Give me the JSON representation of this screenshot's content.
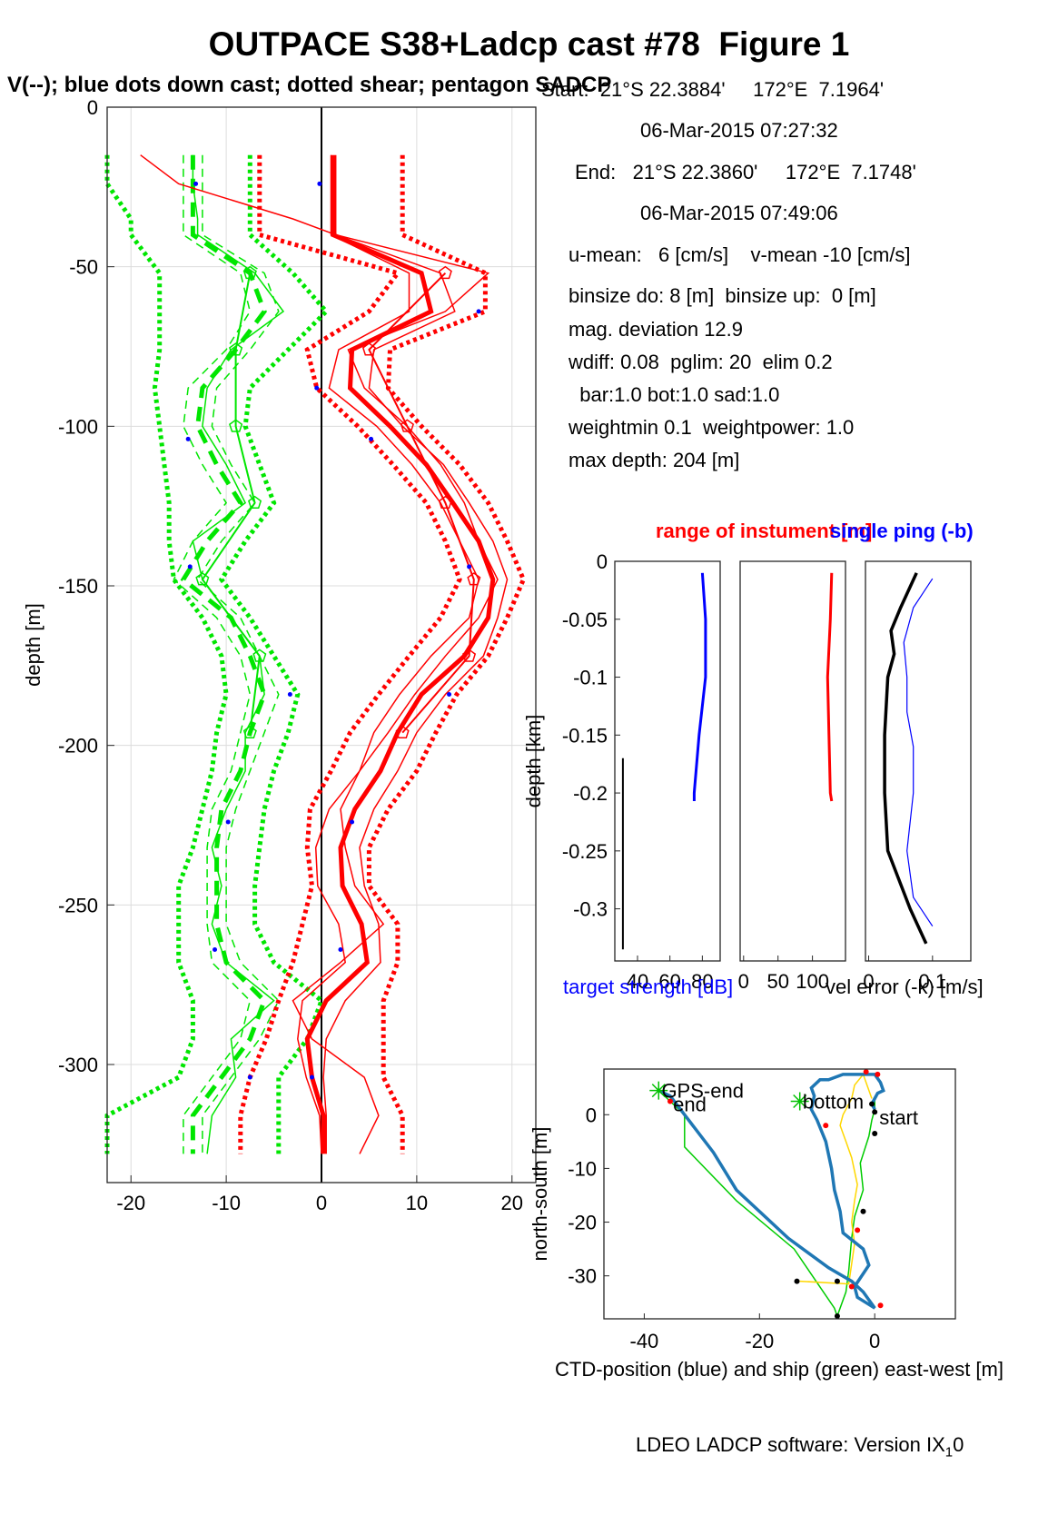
{
  "header": {
    "title": "OUTPACE S38+Ladcp cast #78  Figure 1",
    "subtitle": "V(--); blue dots down cast; dotted shear; pentagon SADCP"
  },
  "cast_info": {
    "start_line": "Start:  21°S 22.3884'     172°E  7.1964'",
    "start_time": "06-Mar-2015 07:27:32",
    "end_line": "End:   21°S 22.3860'     172°E  7.1748'",
    "end_time": "06-Mar-2015 07:49:06",
    "mean_line": "u-mean:   6 [cm/s]    v-mean -10 [cm/s]",
    "binsize_line": "binsize do: 8 [m]  binsize up:  0 [m]",
    "magdev_line": "mag. deviation 12.9",
    "wdiff_line": "wdiff: 0.08  pglim: 20  elim 0.2",
    "bar_line": "  bar:1.0 bot:1.0 sad:1.0",
    "weight_line": "weightmin 0.1  weightpower: 1.0",
    "maxdepth_line": "max depth: 204 [m]"
  },
  "footer": {
    "software": "LDEO LADCP software: Version IX",
    "subscript": "1",
    "suffix": "0"
  },
  "colors": {
    "u": "#ff0000",
    "v": "#00e600",
    "dots": "#0000ff",
    "ts": "#0000ff",
    "ship": "#00cc00",
    "ctd": "#1f77b4",
    "sadcp_track": "#ffd700"
  },
  "chart_data": [
    {
      "type": "line",
      "name": "velocity-profile",
      "ylabel": "depth [m]",
      "xlabel": "",
      "xlim": [
        -22.5,
        22.5
      ],
      "ylim": [
        -337,
        0
      ],
      "xticks": [
        -20,
        -10,
        0,
        10,
        20
      ],
      "yticks": [
        0,
        -50,
        -100,
        -150,
        -200,
        -250,
        -300
      ],
      "grid": true,
      "depths": [
        -15,
        -24,
        -35,
        -40,
        -52,
        -64,
        -76,
        -88,
        -100,
        -112,
        -124,
        -136,
        -148,
        -160,
        -172,
        -184,
        -196,
        -208,
        -220,
        -232,
        -244,
        -256,
        -268,
        -280,
        -292,
        -304,
        -316,
        -328
      ],
      "u": {
        "mean": [
          1.2,
          1.2,
          1.2,
          1.2,
          10.5,
          11.5,
          3.2,
          3.0,
          7.2,
          11.0,
          13.8,
          16.5,
          18.0,
          17.5,
          15.0,
          10.5,
          8.0,
          6.2,
          3.5,
          2.0,
          2.2,
          4.2,
          4.8,
          0.5,
          -1.5,
          -1.0,
          0.2,
          0.2
        ],
        "lower": [
          1.0,
          1.0,
          1.0,
          1.0,
          9.2,
          9.2,
          1.8,
          0.8,
          5.8,
          9.5,
          12.5,
          14.5,
          16.5,
          15.5,
          11.5,
          8.2,
          5.5,
          4.0,
          0.8,
          -0.6,
          -0.4,
          1.8,
          2.5,
          -2.0,
          -2.5,
          -1.6,
          -0.2,
          0.0
        ],
        "upper": [
          1.5,
          1.5,
          1.5,
          1.5,
          12.5,
          14.0,
          5.5,
          5.0,
          8.5,
          12.8,
          15.5,
          18.0,
          19.5,
          18.5,
          17.0,
          13.0,
          10.0,
          8.0,
          5.5,
          4.0,
          4.5,
          6.0,
          6.2,
          2.5,
          0.5,
          0.2,
          0.5,
          0.5
        ],
        "shear_lower": [
          -6.5,
          -6.5,
          -6.5,
          -6.5,
          8.0,
          5.0,
          -1.5,
          -0.5,
          3.8,
          7.5,
          11.0,
          13.0,
          14.5,
          12.5,
          9.2,
          6.0,
          3.0,
          1.0,
          -1.2,
          -1.5,
          -1.0,
          -2.0,
          -3.0,
          -4.5,
          -5.8,
          -7.5,
          -8.5,
          -8.5
        ],
        "shear_upper": [
          8.5,
          8.5,
          8.5,
          8.5,
          17.2,
          17.2,
          7.2,
          7.0,
          10.5,
          14.5,
          17.5,
          19.5,
          21.2,
          19.5,
          17.5,
          14.2,
          12.0,
          10.0,
          7.0,
          5.0,
          5.0,
          8.0,
          8.0,
          6.5,
          6.5,
          6.5,
          8.5,
          8.5
        ],
        "single": [
          -19,
          -15,
          -3,
          1.5,
          17.5,
          13.0,
          2.8,
          4.5,
          9.0,
          12.5,
          15.0,
          16.5,
          18.5,
          16.5,
          13.0,
          9.8,
          7.0,
          4.0,
          2.0,
          2.5,
          3.5,
          6.5,
          2.0,
          -3.0,
          -1.0,
          4.5,
          6.0,
          4.0
        ],
        "sadcp": [
          13.0,
          5.0,
          9.0,
          13.0,
          16.0,
          15.5,
          8.5
        ],
        "sadcp_depths": [
          -52,
          -76,
          -100,
          -124,
          -148,
          -172,
          -196
        ]
      },
      "v": {
        "mean": [
          -13.5,
          -13.5,
          -13.5,
          -13.5,
          -7.5,
          -6.0,
          -9.0,
          -12.5,
          -13.0,
          -11.0,
          -8.5,
          -12.0,
          -14.5,
          -9.5,
          -7.5,
          -6.0,
          -7.5,
          -8.5,
          -10.5,
          -11.0,
          -11.0,
          -11.0,
          -10.0,
          -6.0,
          -7.5,
          -10.5,
          -13.5,
          -13.5
        ],
        "lower": [
          -14.5,
          -14.5,
          -14.5,
          -14.5,
          -8.5,
          -7.5,
          -10.0,
          -14.0,
          -14.5,
          -12.5,
          -10.0,
          -13.5,
          -15.5,
          -11.0,
          -8.5,
          -7.5,
          -8.5,
          -9.5,
          -11.5,
          -12.0,
          -12.0,
          -12.0,
          -11.5,
          -7.5,
          -8.5,
          -11.5,
          -14.5,
          -14.5
        ],
        "upper": [
          -12.5,
          -12.5,
          -12.5,
          -12.5,
          -6.0,
          -4.5,
          -7.5,
          -11.0,
          -11.5,
          -9.5,
          -7.0,
          -10.5,
          -13.0,
          -8.5,
          -6.5,
          -4.5,
          -6.0,
          -7.5,
          -9.0,
          -10.0,
          -10.0,
          -10.0,
          -8.5,
          -4.5,
          -6.5,
          -9.5,
          -12.5,
          -12.5
        ],
        "shear_lower": [
          -22.5,
          -22.5,
          -20.0,
          -20.0,
          -17.0,
          -17.0,
          -17.0,
          -17.5,
          -17.0,
          -16.5,
          -16.0,
          -16.0,
          -15.5,
          -12.5,
          -10.5,
          -10.0,
          -11.0,
          -11.5,
          -12.5,
          -13.5,
          -15.0,
          -15.0,
          -15.0,
          -13.5,
          -13.5,
          -15.0,
          -22.5,
          -22.5
        ],
        "shear_upper": [
          -7.5,
          -7.5,
          -7.5,
          -7.5,
          -3.0,
          0.5,
          -3.5,
          -7.5,
          -8.0,
          -6.5,
          -5.0,
          -8.0,
          -10.5,
          -7.5,
          -5.0,
          -2.5,
          -3.5,
          -5.0,
          -6.0,
          -6.5,
          -7.0,
          -7.0,
          -5.0,
          0.0,
          -1.5,
          -4.5,
          -4.5,
          -4.5
        ],
        "single": [
          -13.5,
          -13.5,
          -13.0,
          -13.0,
          -7.0,
          -4.0,
          -9.5,
          -12.0,
          -12.5,
          -10.0,
          -8.0,
          -13.5,
          -12.5,
          -9.5,
          -6.5,
          -6.0,
          -8.0,
          -8.0,
          -10.0,
          -11.5,
          -10.5,
          -11.5,
          -10.0,
          -5.0,
          -9.5,
          -9.0,
          -11.5,
          -12.0
        ],
        "sadcp": [
          -7.5,
          -9.0,
          -9.0,
          -7.0,
          -12.5,
          -6.5,
          -7.5
        ],
        "sadcp_depths": [
          -52,
          -76,
          -100,
          -124,
          -148,
          -172,
          -196
        ]
      },
      "downcast_dots": [
        [
          -13.2,
          -24
        ],
        [
          -0.2,
          -24
        ],
        [
          16.5,
          -64
        ],
        [
          -0.5,
          -88
        ],
        [
          -14.0,
          -104
        ],
        [
          5.2,
          -104
        ],
        [
          15.5,
          -144
        ],
        [
          -13.8,
          -144
        ],
        [
          13.4,
          -184
        ],
        [
          -3.3,
          -184
        ],
        [
          -9.8,
          -224
        ],
        [
          3.2,
          -224
        ],
        [
          -11.2,
          -264
        ],
        [
          2.0,
          -264
        ],
        [
          -7.5,
          -304
        ],
        [
          -1.0,
          -304
        ]
      ]
    },
    {
      "type": "line",
      "name": "target-strength",
      "title": "",
      "xlabel": "target strength [dB]",
      "ylabel": "depth [km]",
      "xlim": [
        26,
        91
      ],
      "ylim": [
        -0.345,
        0
      ],
      "xticks": [
        40,
        60,
        80
      ],
      "yticks": [
        0,
        -0.05,
        -0.1,
        -0.15,
        -0.2,
        -0.25,
        -0.3
      ],
      "depth_km": [
        -0.01,
        -0.05,
        -0.1,
        -0.15,
        -0.2,
        -0.207
      ],
      "values": [
        80,
        82,
        82,
        78,
        75,
        75
      ],
      "black_depth_km": [
        -0.17,
        -0.335
      ],
      "black_values": [
        31,
        31
      ]
    },
    {
      "type": "line",
      "name": "range-of-instrument",
      "title": "range of instument [m]",
      "xlim": [
        -5,
        148
      ],
      "xticks": [
        0,
        50,
        100
      ],
      "depth_km": [
        -0.01,
        -0.05,
        -0.1,
        -0.15,
        -0.2,
        -0.207
      ],
      "values": [
        128,
        126,
        122,
        124,
        126,
        128
      ]
    },
    {
      "type": "line",
      "name": "vel-error",
      "title": "single ping (-b)",
      "xlabel": "vel error (-k) [m/s]",
      "xlim": [
        -0.005,
        0.16
      ],
      "xticks": [
        0,
        0.1
      ],
      "series": [
        {
          "name": "single ping (-b)",
          "depth_km": [
            -0.015,
            -0.04,
            -0.07,
            -0.1,
            -0.13,
            -0.16,
            -0.2,
            -0.25,
            -0.29,
            -0.315
          ],
          "values": [
            0.1,
            0.07,
            0.055,
            0.06,
            0.06,
            0.07,
            0.07,
            0.06,
            0.07,
            0.1
          ]
        },
        {
          "name": "",
          "depth_km": [
            -0.01,
            -0.04,
            -0.06,
            -0.08,
            -0.1,
            -0.15,
            -0.2,
            -0.25,
            -0.3,
            -0.33
          ],
          "values": [
            0.075,
            0.05,
            0.035,
            0.04,
            0.03,
            0.025,
            0.025,
            0.03,
            0.065,
            0.09
          ]
        }
      ]
    },
    {
      "type": "line",
      "name": "position",
      "xlabel": "CTD-position (blue) and ship (green) east-west [m]",
      "ylabel": "north-south [m]",
      "xlim": [
        -47,
        14
      ],
      "ylim": [
        -38,
        8.5
      ],
      "xticks": [
        -40,
        -20,
        0
      ],
      "yticks": [
        0,
        -10,
        -20,
        -30
      ],
      "annotations": [
        "GPS-end",
        "end",
        "bottom",
        "start"
      ],
      "ctd": [
        [
          -37.5,
          4.5
        ],
        [
          -35.5,
          3.5
        ],
        [
          -33,
          0
        ],
        [
          -28,
          -7
        ],
        [
          -24,
          -14
        ],
        [
          -15,
          -23
        ],
        [
          -8,
          -28.5
        ],
        [
          -4,
          -31
        ],
        [
          -2,
          -33
        ],
        [
          0,
          -36
        ],
        [
          -3,
          -34
        ],
        [
          -3.5,
          -32
        ],
        [
          -1,
          -28
        ],
        [
          -2,
          -25
        ],
        [
          -5.5,
          -22
        ],
        [
          -6,
          -18
        ],
        [
          -7,
          -14
        ],
        [
          -7.5,
          -10
        ],
        [
          -8.5,
          -5
        ],
        [
          -10,
          -1
        ],
        [
          -11,
          1
        ],
        [
          -10.5,
          3.5
        ],
        [
          -11,
          5
        ],
        [
          -9.5,
          6.5
        ],
        [
          -8,
          6.5
        ],
        [
          -5.5,
          7.5
        ],
        [
          -3,
          7.5
        ],
        [
          -1,
          7.5
        ],
        [
          0,
          7.5
        ],
        [
          1,
          6
        ],
        [
          1.5,
          4.5
        ],
        [
          0.5,
          4
        ],
        [
          0,
          3
        ],
        [
          -0.5,
          2
        ],
        [
          0,
          1
        ]
      ],
      "ship": [
        [
          -37.5,
          4.5
        ],
        [
          -33,
          0
        ],
        [
          -33,
          -6
        ],
        [
          -24,
          -16
        ],
        [
          -14,
          -25
        ],
        [
          -7,
          -36
        ],
        [
          -6.5,
          -37.5
        ],
        [
          -5,
          -33
        ],
        [
          -4.5,
          -29
        ],
        [
          -4,
          -23
        ],
        [
          -3.5,
          -19
        ],
        [
          -2,
          -14
        ],
        [
          -2.5,
          -9
        ],
        [
          -1,
          -4
        ],
        [
          -0.5,
          -1
        ],
        [
          0,
          1
        ],
        [
          0,
          3
        ]
      ],
      "sadcp": [
        [
          -13,
          -31
        ],
        [
          -4.5,
          -31.5
        ],
        [
          -3.5,
          -24
        ],
        [
          -4,
          -20
        ],
        [
          -3.5,
          -16
        ],
        [
          -3,
          -13
        ],
        [
          -4,
          -8
        ],
        [
          -5,
          -5
        ],
        [
          -6,
          -2
        ],
        [
          -5.5,
          0
        ],
        [
          -4,
          3
        ],
        [
          -3.5,
          5.5
        ],
        [
          -2,
          7.5
        ],
        [
          -0.5,
          3
        ]
      ],
      "red_markers": [
        [
          -1.5,
          8
        ],
        [
          0.5,
          7.5
        ],
        [
          -35.5,
          2.5
        ],
        [
          -8.5,
          -2
        ],
        [
          -3,
          -21.5
        ],
        [
          -4,
          -32
        ],
        [
          1,
          -35.5
        ]
      ],
      "black_markers": [
        [
          -0.5,
          2
        ],
        [
          0,
          0.5
        ],
        [
          0,
          -3.5
        ],
        [
          -2,
          -18
        ],
        [
          -13.5,
          -31
        ],
        [
          -6.5,
          -31
        ],
        [
          -6.5,
          -37.5
        ]
      ]
    }
  ]
}
